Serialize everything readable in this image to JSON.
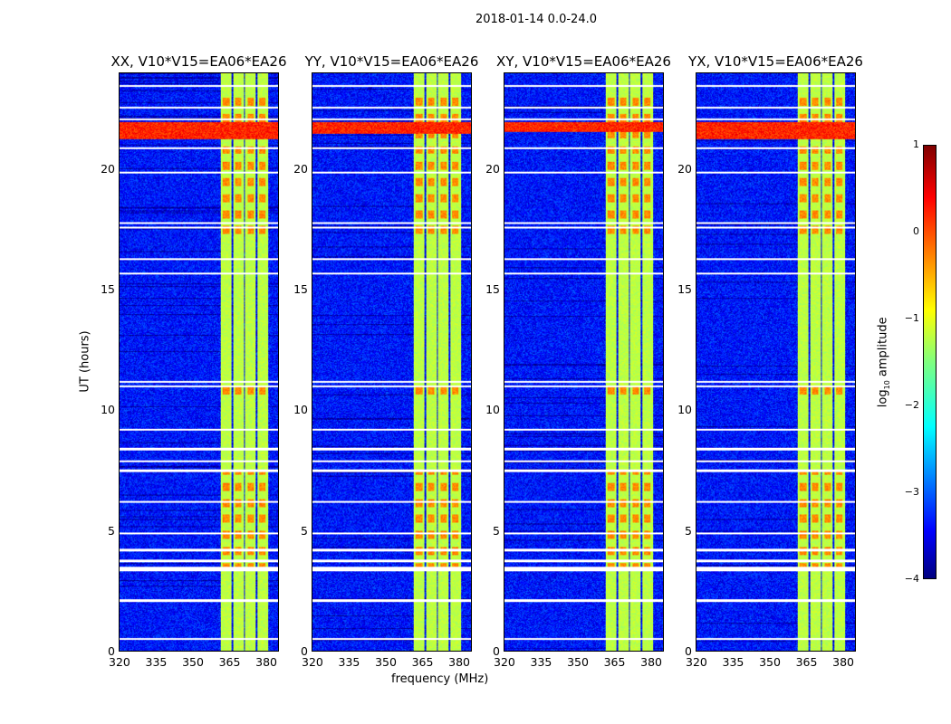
{
  "chart_data": {
    "type": "heatmap",
    "title": "2018-01-14 0.0-24.0",
    "xlabel": "frequency (MHz)",
    "ylabel": "UT (hours)",
    "xlim": [
      320,
      385.5
    ],
    "ylim": [
      0,
      24
    ],
    "xticks": [
      "320",
      "335",
      "350",
      "365",
      "380"
    ],
    "xtick_values": [
      320,
      335,
      350,
      365,
      380
    ],
    "yticks": [
      "0",
      "5",
      "10",
      "15",
      "20"
    ],
    "ytick_values": [
      0,
      5,
      10,
      15,
      20
    ],
    "panels": [
      {
        "title": "XX, V10*V15=EA06*EA26",
        "rfi_band_hours": [
          21.3,
          22.0
        ]
      },
      {
        "title": "YY, V10*V15=EA06*EA26",
        "rfi_band_hours": [
          21.5,
          22.0
        ]
      },
      {
        "title": "XY, V10*V15=EA06*EA26",
        "rfi_band_hours": [
          21.6,
          22.0
        ]
      },
      {
        "title": "YX, V10*V15=EA06*EA26",
        "rfi_band_hours": [
          21.3,
          22.0
        ]
      }
    ],
    "background_log_amplitude": -3.3,
    "active_channels_mhz": [
      [
        361.5,
        366.2
      ],
      [
        366.7,
        371.2
      ],
      [
        371.7,
        376.2
      ],
      [
        376.7,
        381.3
      ]
    ],
    "active_channel_log_amplitude": -1.2,
    "high_amplitude_hours": [
      [
        3.4,
        7.5
      ],
      [
        10.5,
        11.0
      ],
      [
        17.0,
        23.0
      ]
    ],
    "high_log_amplitude": -0.3,
    "flagged_hours": [
      0.5,
      2.1,
      3.35,
      3.45,
      3.75,
      4.2,
      4.9,
      6.2,
      7.5,
      7.9,
      8.4,
      9.2,
      11.0,
      11.2,
      15.7,
      16.3,
      17.6,
      17.8,
      19.9,
      20.9,
      22.1,
      22.6,
      23.5
    ],
    "colorbar": {
      "label": "log10 amplitude",
      "label_main": "log",
      "label_sub": "10",
      "label_rest": " amplitude",
      "range": [
        -4,
        1
      ],
      "ticks": [
        "1",
        "0",
        "−1",
        "−2",
        "−3",
        "−4"
      ],
      "tick_values": [
        1,
        0,
        -1,
        -2,
        -3,
        -4
      ],
      "colormap": "jet"
    }
  }
}
